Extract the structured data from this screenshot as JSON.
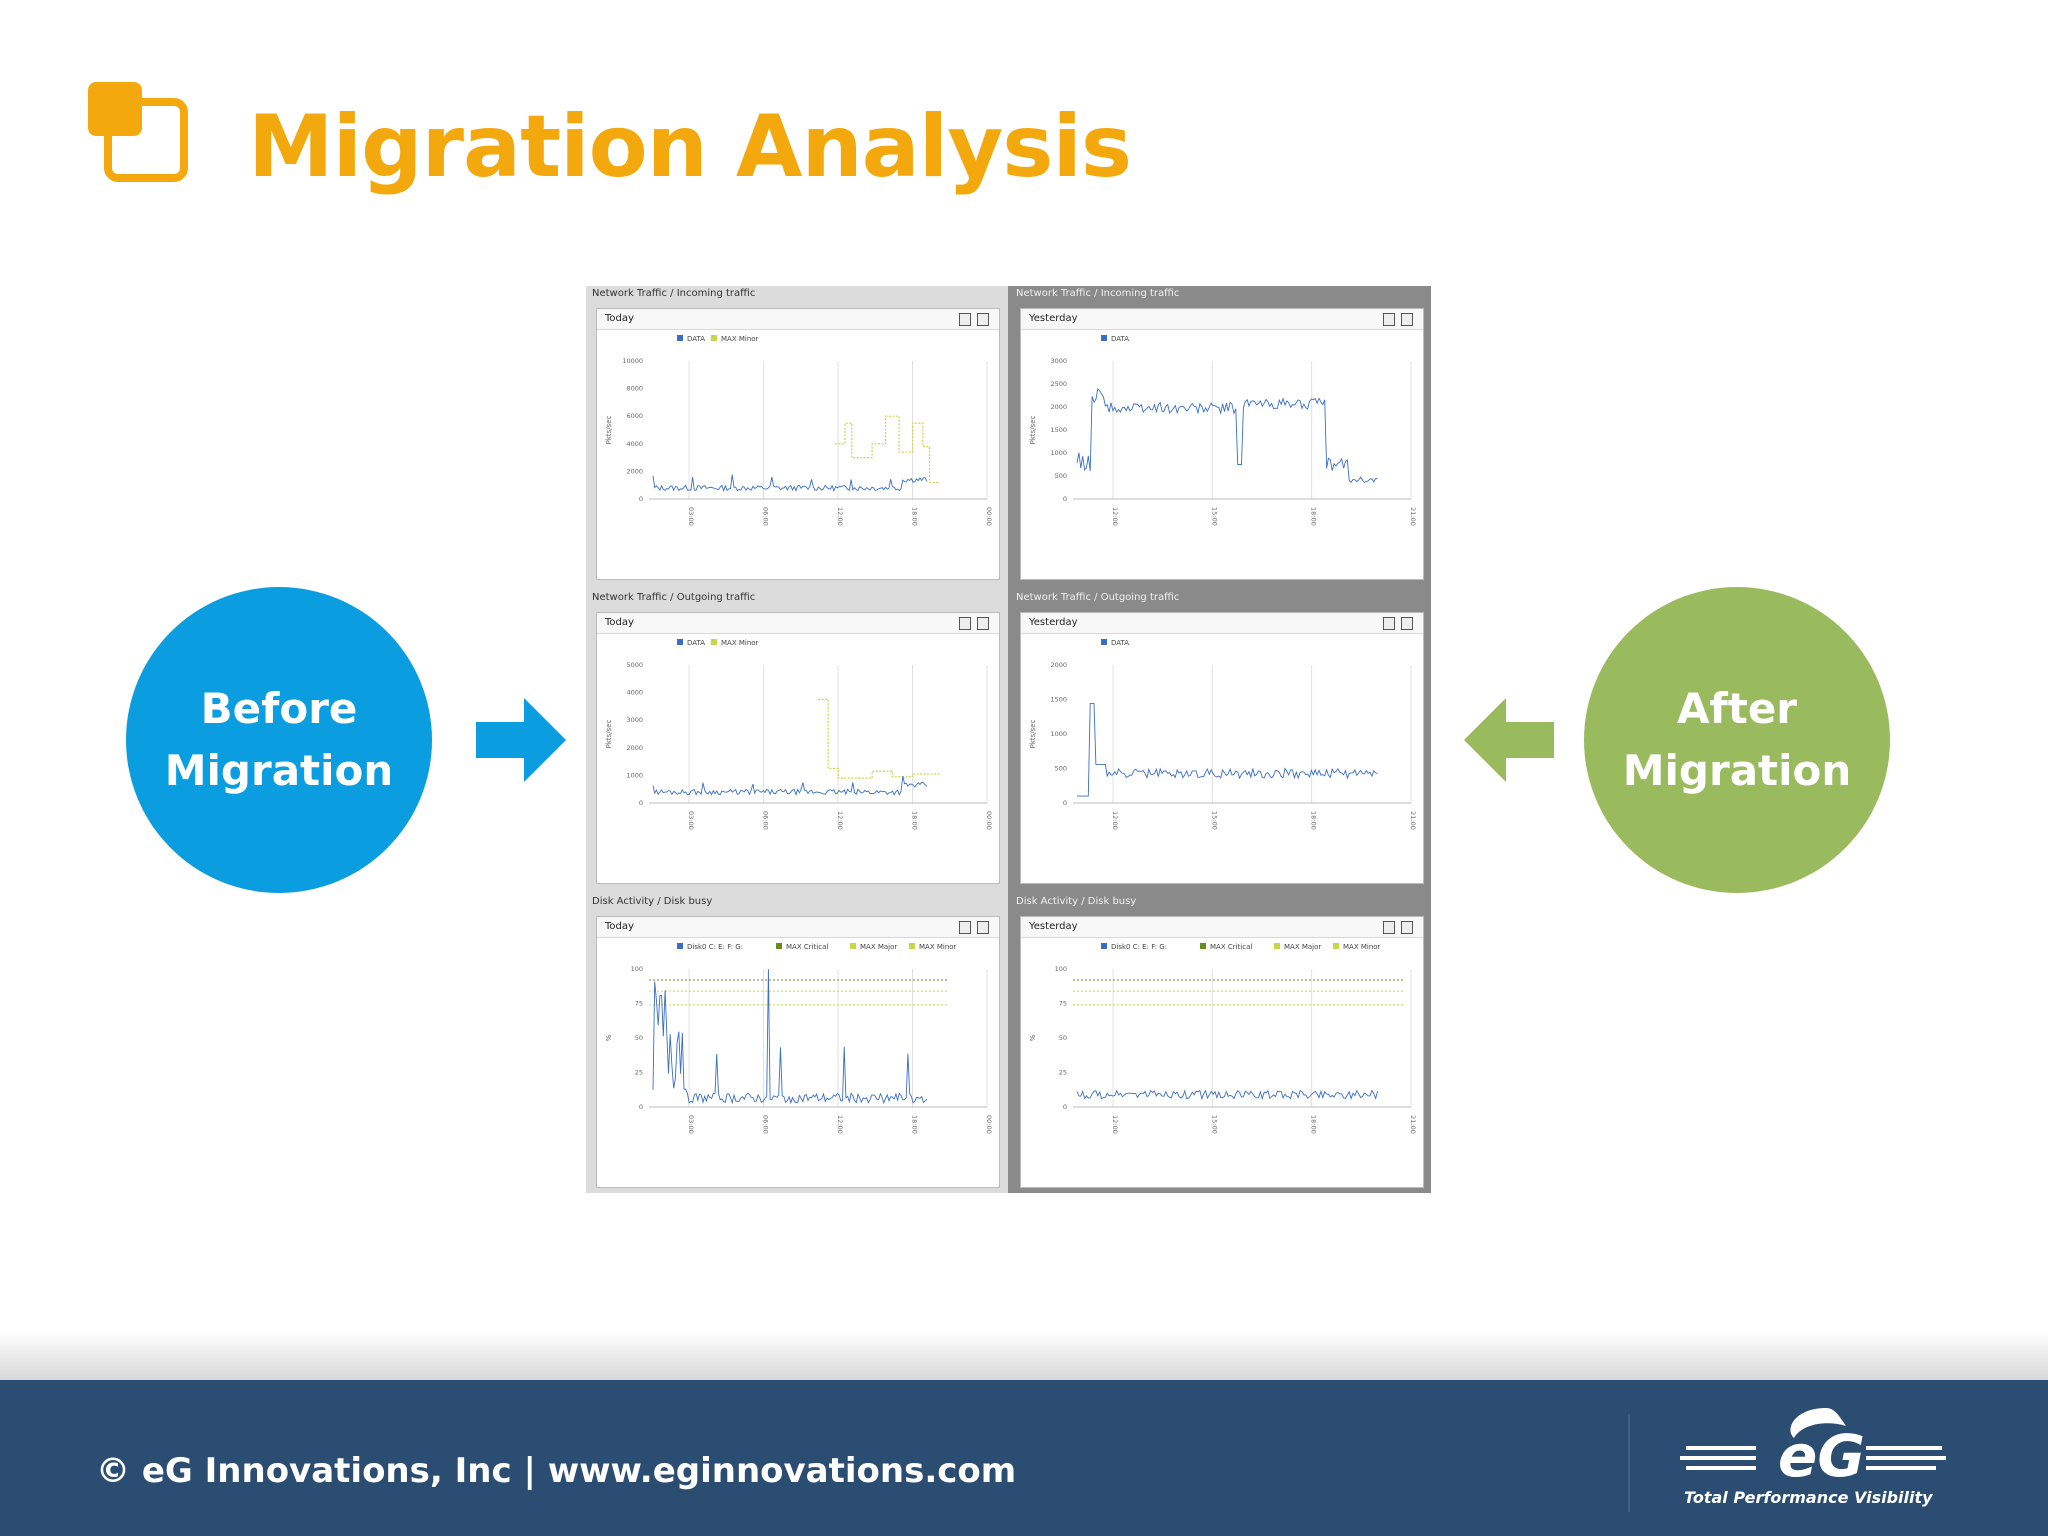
{
  "slide": {
    "title": "Migration Analysis",
    "before_label": "Before Migration",
    "after_label": "After Migration",
    "footer_text": "© eG Innovations, Inc  |  www.eginnovations.com",
    "logo_text": "eG",
    "logo_tagline": "Total Performance Visibility"
  },
  "colors": {
    "title": "#f3a90d",
    "before": "#0a9ddf",
    "after": "#9aba5e",
    "footer": "#2b4d72",
    "data_series": "#3a6fc4",
    "threshold": "#c9d64a"
  },
  "panels": [
    {
      "heading": "Network Traffic / Incoming traffic",
      "tab": "Today",
      "legend": [
        "DATA",
        "MAX Minor"
      ],
      "y_label": "Pkts/sec",
      "y_ticks": [
        "10000",
        "8000",
        "6000",
        "4000",
        "2000",
        "0"
      ],
      "x_ticks": [
        "03:00",
        "06:00",
        "12:00",
        "18:00",
        "00:00"
      ]
    },
    {
      "heading": "Network Traffic / Incoming traffic",
      "tab": "Yesterday",
      "legend": [
        "DATA"
      ],
      "y_label": "Pkts/sec",
      "y_ticks": [
        "3000",
        "2500",
        "2000",
        "1500",
        "1000",
        "500",
        "0"
      ],
      "x_ticks": [
        "12:00",
        "15:00",
        "18:00",
        "21:00"
      ]
    },
    {
      "heading": "Network Traffic / Outgoing traffic",
      "tab": "Today",
      "legend": [
        "DATA",
        "MAX Minor"
      ],
      "y_label": "Pkts/sec",
      "y_ticks": [
        "5000",
        "4000",
        "3000",
        "2000",
        "1000",
        "0"
      ],
      "x_ticks": [
        "03:00",
        "06:00",
        "12:00",
        "18:00",
        "00:00"
      ]
    },
    {
      "heading": "Network Traffic / Outgoing traffic",
      "tab": "Yesterday",
      "legend": [
        "DATA"
      ],
      "y_label": "Pkts/sec",
      "y_ticks": [
        "2000",
        "1500",
        "1000",
        "500",
        "0"
      ],
      "x_ticks": [
        "12:00",
        "15:00",
        "18:00",
        "21:00"
      ]
    },
    {
      "heading": "Disk Activity / Disk busy",
      "tab": "Today",
      "legend": [
        "Disk0 C: E: F: G:",
        "MAX Critical",
        "MAX Major",
        "MAX Minor"
      ],
      "y_label": "%",
      "y_ticks": [
        "100",
        "75",
        "50",
        "25",
        "0"
      ],
      "x_ticks": [
        "03:00",
        "06:00",
        "12:00",
        "18:00",
        "00:00"
      ]
    },
    {
      "heading": "Disk Activity / Disk busy",
      "tab": "Yesterday",
      "legend": [
        "Disk0 C: E: F: G:",
        "MAX Critical",
        "MAX Major",
        "MAX Minor"
      ],
      "y_label": "%",
      "y_ticks": [
        "100",
        "75",
        "50",
        "25",
        "0"
      ],
      "x_ticks": [
        "12:00",
        "15:00",
        "18:00",
        "21:00"
      ]
    }
  ]
}
